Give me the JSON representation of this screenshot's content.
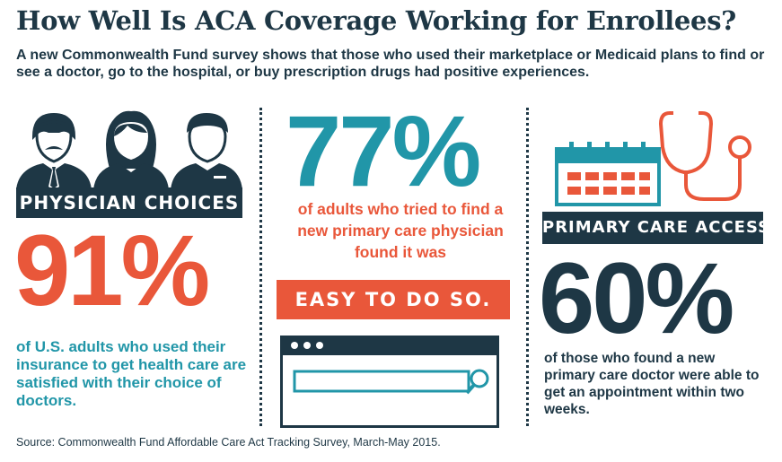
{
  "header": {
    "title": "How Well Is ACA Coverage Working for Enrollees?",
    "subtitle": "A new Commonwealth Fund survey shows that those who used their marketplace or Medicaid plans to find or see a doctor, go to the hospital, or buy prescription drugs had positive experiences."
  },
  "physician_choices": {
    "banner": "PHYSICIAN CHOICES",
    "stat": "91%",
    "description": "of U.S. adults who used their insurance to get health care are satisfied with their choice of doctors.",
    "icon": "people-icon"
  },
  "new_physician": {
    "stat": "77%",
    "description": "of adults who tried to find a new primary care physician found it was",
    "highlight": "EASY TO DO SO.",
    "icon": "browser-search-icon"
  },
  "primary_care_access": {
    "banner": "PRIMARY CARE ACCESS",
    "stat": "60%",
    "description": "of those who found a new primary care doctor were able to get an appointment within two weeks.",
    "icon": "calendar-stethoscope-icon"
  },
  "footer": {
    "source": "Source: Commonwealth Fund Affordable Care Act Tracking Survey, March-May 2015."
  },
  "colors": {
    "navy": "#1e3745",
    "orange": "#e9573a",
    "teal": "#2196a8"
  }
}
